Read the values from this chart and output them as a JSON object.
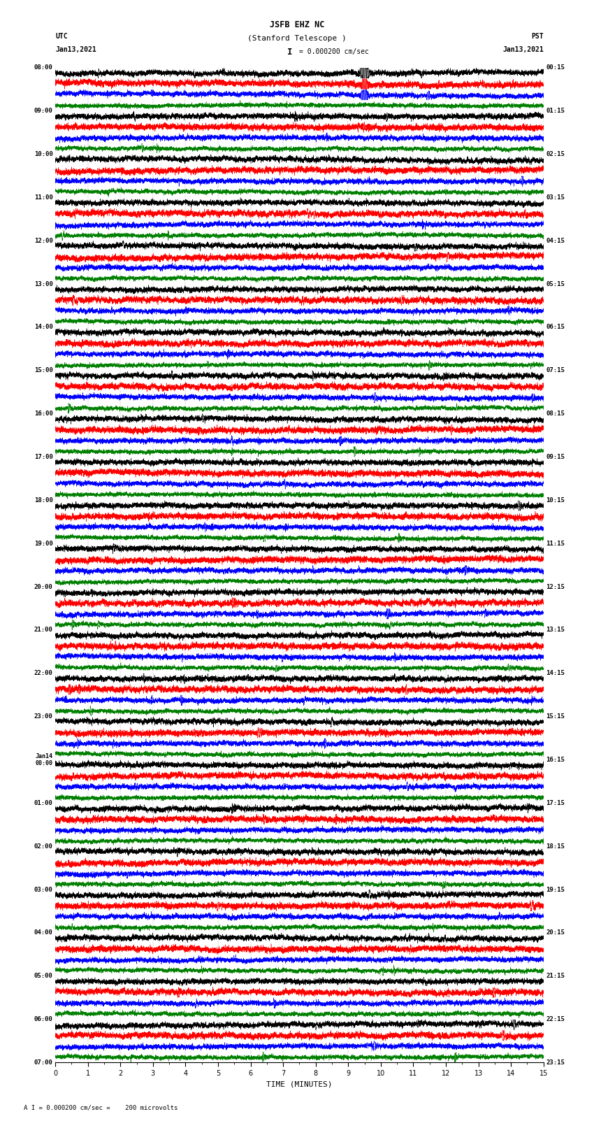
{
  "title_line1": "JSFB EHZ NC",
  "title_line2": "(Stanford Telescope )",
  "title_line3": "I = 0.000200 cm/sec",
  "label_utc": "UTC",
  "label_pst": "PST",
  "label_date_left": "Jan13,2021",
  "label_date_right": "Jan13,2021",
  "xlabel": "TIME (MINUTES)",
  "footer": "A I = 0.000200 cm/sec =    200 microvolts",
  "xlim": [
    0,
    15
  ],
  "xticks": [
    0,
    1,
    2,
    3,
    4,
    5,
    6,
    7,
    8,
    9,
    10,
    11,
    12,
    13,
    14,
    15
  ],
  "num_hours": 23,
  "traces_per_hour": 4,
  "colors": [
    "black",
    "red",
    "blue",
    "green"
  ],
  "background": "white",
  "fig_width": 8.5,
  "fig_height": 16.13,
  "left_labels_utc": [
    "08:00",
    "09:00",
    "10:00",
    "11:00",
    "12:00",
    "13:00",
    "14:00",
    "15:00",
    "16:00",
    "17:00",
    "18:00",
    "19:00",
    "20:00",
    "21:00",
    "22:00",
    "23:00",
    "Jan14\n00:00",
    "01:00",
    "02:00",
    "03:00",
    "04:00",
    "05:00",
    "06:00",
    "07:00"
  ],
  "right_labels_pst": [
    "00:15",
    "01:15",
    "02:15",
    "03:15",
    "04:15",
    "05:15",
    "06:15",
    "07:15",
    "08:15",
    "09:15",
    "10:15",
    "11:15",
    "12:15",
    "13:15",
    "14:15",
    "15:15",
    "16:15",
    "17:15",
    "18:15",
    "19:15",
    "20:15",
    "21:15",
    "22:15",
    "23:15"
  ]
}
